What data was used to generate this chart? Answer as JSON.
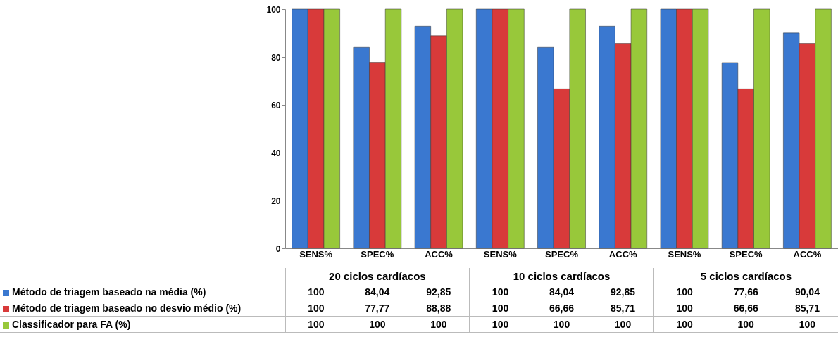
{
  "chart_data": {
    "type": "bar",
    "categories": [
      "SENS%",
      "SPEC%",
      "ACC%",
      "SENS%",
      "SPEC%",
      "ACC%",
      "SENS%",
      "SPEC%",
      "ACC%"
    ],
    "ylim": [
      0,
      100
    ],
    "yticks": [
      0,
      20,
      40,
      60,
      80,
      100
    ],
    "legend": "bottom",
    "annotations": [
      "20 ciclos cardíacos",
      "10 ciclos cardíacos",
      "5 ciclos cardíacos"
    ],
    "series": [
      {
        "name": "Método de triagem baseado na média (%)",
        "color": "#3a78d0",
        "values": [
          100,
          84.04,
          92.85,
          100,
          84.04,
          92.85,
          100,
          77.66,
          90.04
        ],
        "value_labels": [
          "100",
          "84,04",
          "92,85",
          "100",
          "84,04",
          "92,85",
          "100",
          "77,66",
          "90,04"
        ]
      },
      {
        "name": "Método de triagem baseado no desvio médio (%)",
        "color": "#d83a3a",
        "values": [
          100,
          77.77,
          88.88,
          100,
          66.66,
          85.71,
          100,
          66.66,
          85.71
        ],
        "value_labels": [
          "100",
          "77,77",
          "88,88",
          "100",
          "66,66",
          "85,71",
          "100",
          "66,66",
          "85,71"
        ]
      },
      {
        "name": "Classificador para FA (%)",
        "color": "#98c83a",
        "values": [
          100,
          100,
          100,
          100,
          100,
          100,
          100,
          100,
          100
        ],
        "value_labels": [
          "100",
          "100",
          "100",
          "100",
          "100",
          "100",
          "100",
          "100",
          "100"
        ]
      }
    ]
  }
}
